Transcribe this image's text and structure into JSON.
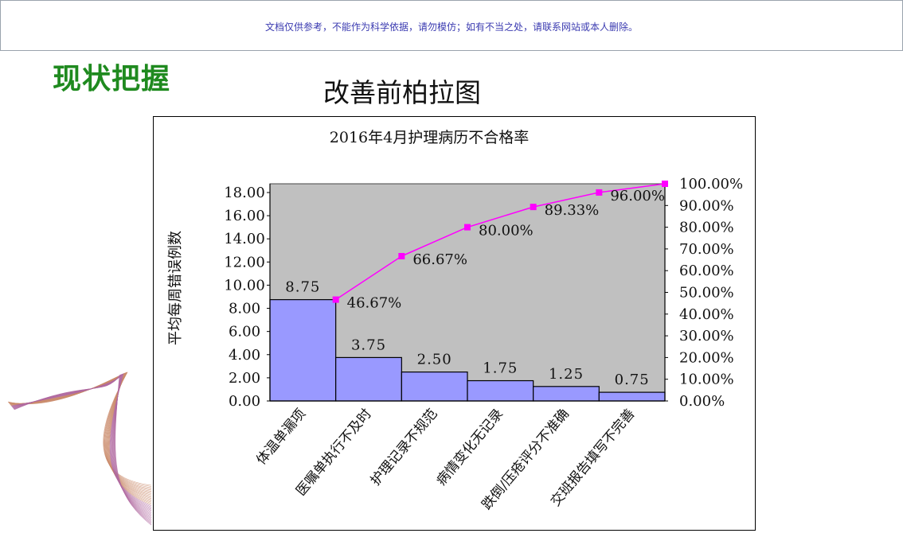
{
  "banner": {
    "text": "文档仅供参考，不能作为科学依据，请勿模仿；如有不当之处，请联系网站或本人删除。"
  },
  "section_title": "现状把握",
  "slide_title": "改善前柏拉图",
  "chart_data": {
    "type": "bar",
    "title": "2016年4月护理病历不合格率",
    "xlabel": "",
    "ylabel": "平均每周错误例数",
    "categories": [
      "体温单漏项",
      "医嘱单执行不及时",
      "护理记录不规范",
      "病情变化无记录",
      "跌倒/压疮评分不准确",
      "交班报告填写不完善"
    ],
    "values": [
      8.75,
      3.75,
      2.5,
      1.75,
      1.25,
      0.75
    ],
    "value_labels": [
      "8.75",
      "3.75",
      "2.50",
      "1.75",
      "1.25",
      "0.75"
    ],
    "ylim": [
      0,
      18
    ],
    "yticks": [
      "0.00",
      "2.00",
      "4.00",
      "6.00",
      "8.00",
      "10.00",
      "12.00",
      "14.00",
      "16.00",
      "18.00"
    ],
    "y2lim": [
      0,
      100
    ],
    "y2ticks": [
      "0.00%",
      "10.00%",
      "20.00%",
      "30.00%",
      "40.00%",
      "50.00%",
      "60.00%",
      "70.00%",
      "80.00%",
      "90.00%",
      "100.00%"
    ],
    "cumulative": [
      46.67,
      66.67,
      80.0,
      89.33,
      96.0,
      100.0
    ],
    "cumulative_labels": [
      "46.67%",
      "66.67%",
      "80.00%",
      "89.33%",
      "96.00%"
    ],
    "colors": {
      "bar": "#9999ff",
      "line": "#ff00ff",
      "plot_bg": "#c0c0c0"
    }
  }
}
